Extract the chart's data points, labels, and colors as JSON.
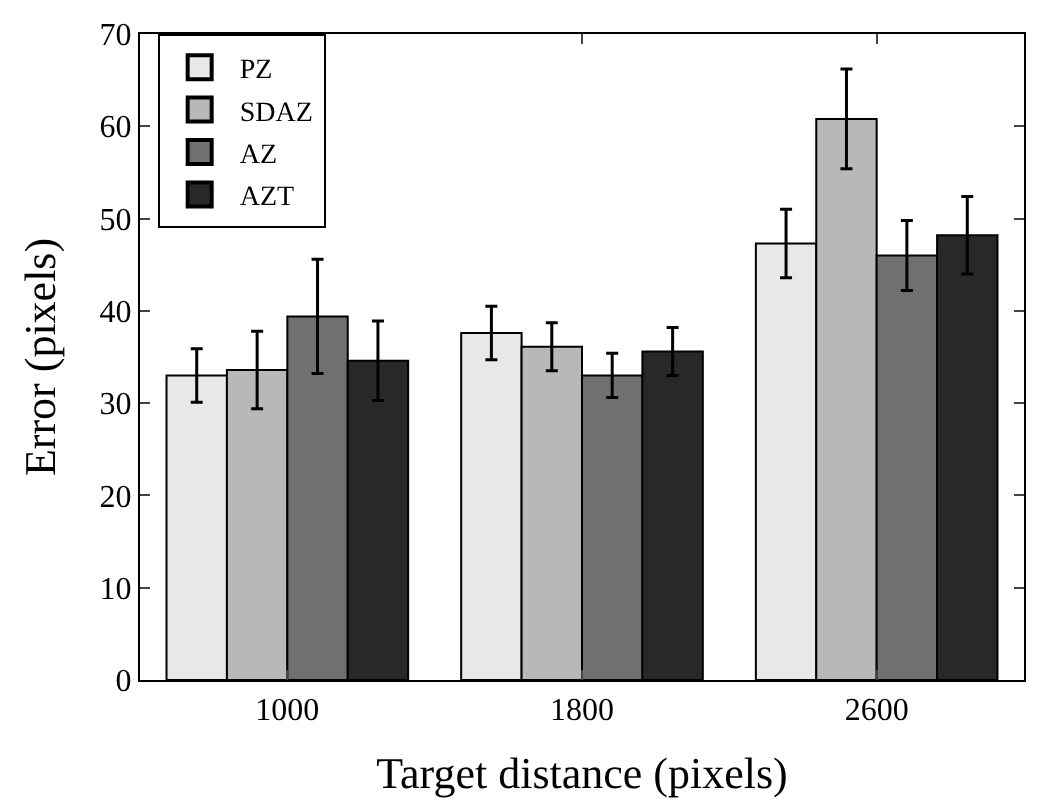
{
  "chart_data": {
    "type": "bar",
    "xlabel": "Target distance (pixels)",
    "ylabel": "Error (pixels)",
    "categories": [
      "1000",
      "1800",
      "2600"
    ],
    "series": [
      {
        "name": "PZ",
        "color": "#e8e8e8",
        "values": [
          33.0,
          37.6,
          47.3
        ],
        "errors": [
          2.9,
          2.9,
          3.7
        ]
      },
      {
        "name": "SDAZ",
        "color": "#b8b8b8",
        "values": [
          33.6,
          36.1,
          60.8
        ],
        "errors": [
          4.2,
          2.6,
          5.4
        ]
      },
      {
        "name": "AZ",
        "color": "#707070",
        "values": [
          39.4,
          33.0,
          46.0
        ],
        "errors": [
          6.2,
          2.4,
          3.8
        ]
      },
      {
        "name": "AZT",
        "color": "#282828",
        "values": [
          34.6,
          35.6,
          48.2
        ],
        "errors": [
          4.3,
          2.6,
          4.2
        ]
      }
    ],
    "ylim": [
      0,
      70
    ],
    "yticks": [
      0,
      10,
      20,
      30,
      40,
      50,
      60,
      70
    ],
    "grid": false,
    "legend": "top left"
  }
}
